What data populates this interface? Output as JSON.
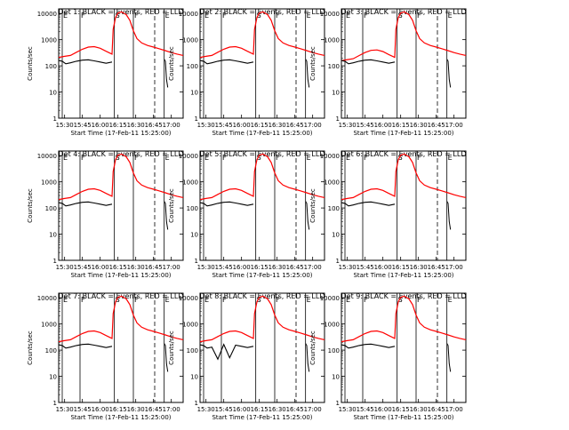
{
  "figure": {
    "xlabel": "Start Time (17-Feb-11 15:25:00)",
    "ylabel": "Counts/sec"
  },
  "chart_data": {
    "type": "line",
    "scale_y": "log",
    "ylim": [
      1,
      15000
    ],
    "xlim_minutes_after_15_25": [
      0,
      105
    ],
    "x_tick_labels": [
      "15:30",
      "15:45",
      "16:00",
      "16:15",
      "16:30",
      "16:45",
      "17:00"
    ],
    "x_tick_minutes": [
      5,
      20,
      35,
      50,
      65,
      80,
      95
    ],
    "y_tick_labels": [
      "1",
      "10",
      "100",
      "1000",
      "10000"
    ],
    "y_tick_values": [
      1,
      10,
      100,
      1000,
      10000
    ],
    "marker_letters": [
      "E",
      "F",
      "S",
      "F",
      "E"
    ],
    "marker_times_min": [
      3,
      18,
      47,
      63,
      89
    ],
    "dashed_line_min": 81,
    "colors": {
      "events": "#000000",
      "lld": "#ff0000"
    },
    "panels": [
      {
        "title": "Det 1:  BLACK = Events, RED = LLD",
        "variant": "a"
      },
      {
        "title": "Det 2:  BLACK = Events, RED = LLD",
        "variant": "a"
      },
      {
        "title": "Det 3:  BLACK = Events, RED = LLD",
        "variant": "b"
      },
      {
        "title": "Det 4:  BLACK = Events, RED = LLD",
        "variant": "a"
      },
      {
        "title": "Det 5:  BLACK = Events, RED = LLD",
        "variant": "a"
      },
      {
        "title": "Det 6:  BLACK = Events, RED = LLD",
        "variant": "a"
      },
      {
        "title": "Det 7:  BLACK = Events, RED = LLD",
        "variant": "a"
      },
      {
        "title": "Det 8:  BLACK = Events, RED = LLD",
        "variant": "c"
      },
      {
        "title": "Det 9:  BLACK = Events, RED = LLD",
        "variant": "a"
      }
    ],
    "series": [
      {
        "name": "LLD",
        "x_min": [
          0,
          5,
          10,
          15,
          20,
          25,
          30,
          35,
          40,
          45,
          46,
          48,
          50,
          53,
          57,
          60,
          63,
          66,
          70,
          75,
          80,
          85,
          90,
          95,
          100,
          105
        ],
        "y": [
          210,
          230,
          250,
          330,
          430,
          520,
          540,
          470,
          360,
          280,
          2500,
          7000,
          10500,
          11500,
          9000,
          5500,
          2200,
          1100,
          750,
          600,
          520,
          450,
          380,
          320,
          280,
          250
        ]
      },
      {
        "name": "Events",
        "x_min": [
          0,
          3,
          6,
          10,
          15,
          20,
          25,
          30,
          35,
          40,
          45
        ],
        "y": [
          160,
          150,
          120,
          130,
          150,
          165,
          170,
          155,
          140,
          125,
          140
        ]
      }
    ]
  }
}
